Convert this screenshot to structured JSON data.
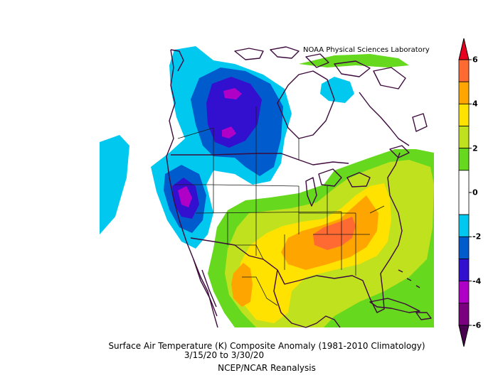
{
  "credit": "NOAA Physical Sciences Laboratory",
  "caption": {
    "line1": "Surface Air Temperature (K) Composite Anomaly (1981-2010 Climatology)",
    "line2": "3/15/20   to 3/30/20",
    "line3": "NCEP/NCAR Reanalysis"
  },
  "colorbar": {
    "labels": [
      {
        "value": 6,
        "text": "6"
      },
      {
        "value": 4,
        "text": "4"
      },
      {
        "value": 2,
        "text": "2"
      },
      {
        "value": 0,
        "text": "0"
      },
      {
        "value": -2,
        "text": "-2"
      },
      {
        "value": -4,
        "text": "-4"
      },
      {
        "value": -6,
        "text": "-6"
      }
    ],
    "bins": [
      {
        "from": 5,
        "to": 6,
        "color": "#ff6a33"
      },
      {
        "from": 4,
        "to": 5,
        "color": "#ffa500"
      },
      {
        "from": 3,
        "to": 4,
        "color": "#ffe200"
      },
      {
        "from": 2,
        "to": 3,
        "color": "#c0e21e"
      },
      {
        "from": 1,
        "to": 2,
        "color": "#66d81e"
      },
      {
        "from": -1,
        "to": 1,
        "color": "#ffffff"
      },
      {
        "from": -2,
        "to": -1,
        "color": "#00c8ee"
      },
      {
        "from": -3,
        "to": -2,
        "color": "#005ccc"
      },
      {
        "from": -4,
        "to": -3,
        "color": "#3310d0"
      },
      {
        "from": -5,
        "to": -4,
        "color": "#b000c8"
      },
      {
        "from": -6,
        "to": -5,
        "color": "#7a0080"
      }
    ],
    "top_arrow_color": "#e8001e",
    "bottom_arrow_color": "#4a0050"
  }
}
